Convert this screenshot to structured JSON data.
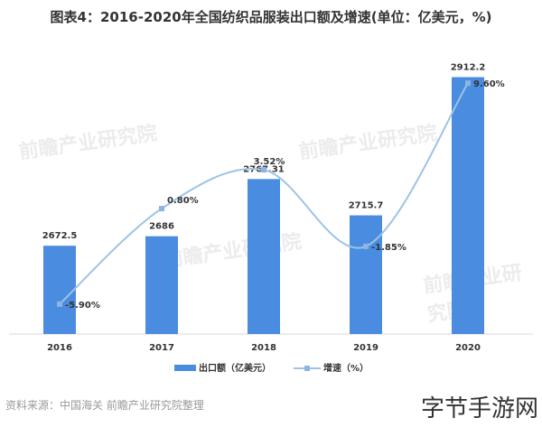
{
  "title": "图表4：2016-2020年全国纺织品服装出口额及增速(单位：亿美元，%)",
  "source": "资料来源：中国海关 前瞻产业研究院整理",
  "watermark": "字节手游网",
  "logo_watermark": "前瞻产业研究院",
  "chart_data": {
    "type": "bar+line",
    "categories": [
      "2016",
      "2017",
      "2018",
      "2019",
      "2020"
    ],
    "series": [
      {
        "name": "出口额（亿美元）",
        "type": "bar",
        "axis": "left",
        "values": [
          2672.5,
          2686,
          2767.31,
          2715.7,
          2912.2
        ],
        "labels": [
          "2672.5",
          "2686",
          "2767.31",
          "2715.7",
          "2912.2"
        ],
        "color": "#4a8de0"
      },
      {
        "name": "增速（%）",
        "type": "line",
        "smooth": true,
        "axis": "right",
        "values": [
          -5.9,
          0.8,
          3.52,
          -1.85,
          9.6
        ],
        "labels": [
          "-5.90%",
          "0.80%",
          "3.52%",
          "-1.85%",
          "9.60%"
        ],
        "color": "#9dc3e6"
      }
    ],
    "ylim_left": [
      2547,
      2932
    ],
    "ylim_right": [
      -8,
      11
    ],
    "axes_visible": false,
    "grid": false,
    "legend": "bottom"
  }
}
